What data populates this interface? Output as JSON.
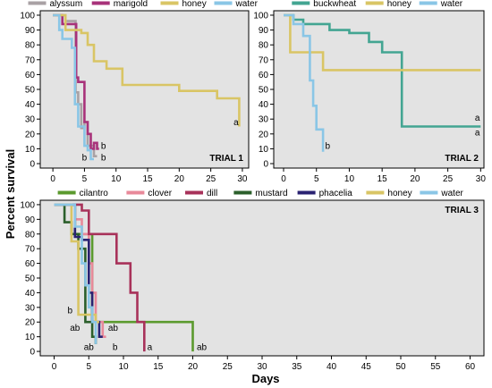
{
  "figure": {
    "ylabel": "Percent survival",
    "xlabel": "Days"
  },
  "chart_data": [
    {
      "type": "line",
      "title": "TRIAL 1",
      "xlim": [
        -2,
        31
      ],
      "ylim": [
        -3,
        103
      ],
      "xticks": [
        0,
        5,
        10,
        15,
        20,
        25,
        30
      ],
      "yticks": [
        0,
        10,
        20,
        30,
        40,
        50,
        60,
        70,
        80,
        90,
        100
      ],
      "legend_position": "top",
      "series": [
        {
          "name": "alyssum",
          "color": "#a9a1a4",
          "points": [
            [
              0,
              100
            ],
            [
              2,
              100
            ],
            [
              2,
              96
            ],
            [
              3.6,
              96
            ],
            [
              3.6,
              48
            ],
            [
              4,
              48
            ],
            [
              4,
              40
            ],
            [
              4.5,
              40
            ],
            [
              4.5,
              24
            ],
            [
              5,
              24
            ],
            [
              5,
              28
            ],
            [
              5.5,
              28
            ],
            [
              5.5,
              12
            ],
            [
              6.5,
              12
            ],
            [
              6.5,
              5
            ],
            [
              7,
              5
            ]
          ]
        },
        {
          "name": "marigold",
          "color": "#a8327a",
          "points": [
            [
              0,
              100
            ],
            [
              1.5,
              100
            ],
            [
              1.5,
              94
            ],
            [
              3.7,
              94
            ],
            [
              3.7,
              58
            ],
            [
              4,
              58
            ],
            [
              4,
              55
            ],
            [
              5,
              55
            ],
            [
              5,
              28
            ],
            [
              5.5,
              28
            ],
            [
              5.5,
              20
            ],
            [
              6,
              20
            ],
            [
              6,
              10
            ],
            [
              6.5,
              10
            ],
            [
              6.5,
              14
            ],
            [
              7,
              14
            ],
            [
              7,
              10
            ],
            [
              7.3,
              10
            ]
          ]
        },
        {
          "name": "honey",
          "color": "#d9c565",
          "points": [
            [
              0,
              100
            ],
            [
              2,
              100
            ],
            [
              2,
              90
            ],
            [
              4.5,
              90
            ],
            [
              4.5,
              88
            ],
            [
              5.5,
              88
            ],
            [
              5.5,
              80
            ],
            [
              6.5,
              80
            ],
            [
              6.5,
              69
            ],
            [
              8.5,
              69
            ],
            [
              8.5,
              64
            ],
            [
              11,
              64
            ],
            [
              11,
              53
            ],
            [
              20,
              53
            ],
            [
              20,
              49
            ],
            [
              26,
              49
            ],
            [
              26,
              44
            ],
            [
              29.5,
              44
            ],
            [
              29.5,
              25
            ]
          ]
        },
        {
          "name": "water",
          "color": "#8ac6e6",
          "points": [
            [
              0,
              100
            ],
            [
              1,
              100
            ],
            [
              1,
              90
            ],
            [
              1.5,
              90
            ],
            [
              1.5,
              84
            ],
            [
              3,
              84
            ],
            [
              3,
              78
            ],
            [
              3.5,
              78
            ],
            [
              3.5,
              40
            ],
            [
              4,
              40
            ],
            [
              4,
              25
            ],
            [
              5,
              25
            ],
            [
              5,
              12
            ],
            [
              5.5,
              12
            ],
            [
              5.5,
              9
            ],
            [
              6,
              9
            ],
            [
              6,
              3
            ],
            [
              6.5,
              3
            ]
          ]
        }
      ],
      "annotations": [
        {
          "text": "a",
          "x": 29,
          "y": 26
        },
        {
          "text": "b",
          "x": 5.0,
          "y": 2
        },
        {
          "text": "b",
          "x": 8.0,
          "y": 10
        },
        {
          "text": "b",
          "x": 8.0,
          "y": 2
        }
      ]
    },
    {
      "type": "line",
      "title": "TRIAL 2",
      "xlim": [
        -1.5,
        30.5
      ],
      "ylim": [
        -3,
        103
      ],
      "xticks": [
        0,
        5,
        10,
        15,
        20,
        25,
        30
      ],
      "yticks": [
        0,
        10,
        20,
        30,
        40,
        50,
        60,
        70,
        80,
        90,
        100
      ],
      "legend_position": "top",
      "series": [
        {
          "name": "buckwheat",
          "color": "#43a592",
          "points": [
            [
              0,
              100
            ],
            [
              1.5,
              100
            ],
            [
              1.5,
              97
            ],
            [
              3,
              97
            ],
            [
              3,
              94
            ],
            [
              7,
              94
            ],
            [
              7,
              90
            ],
            [
              10,
              90
            ],
            [
              10,
              88
            ],
            [
              13,
              88
            ],
            [
              13,
              82
            ],
            [
              15,
              82
            ],
            [
              15,
              75
            ],
            [
              18,
              75
            ],
            [
              18,
              25
            ],
            [
              30,
              25
            ]
          ]
        },
        {
          "name": "honey",
          "color": "#d9c565",
          "points": [
            [
              0,
              100
            ],
            [
              1,
              100
            ],
            [
              1,
              75
            ],
            [
              6,
              75
            ],
            [
              6,
              63
            ],
            [
              30,
              63
            ]
          ]
        },
        {
          "name": "water",
          "color": "#8ac6e6",
          "points": [
            [
              0,
              100
            ],
            [
              1.5,
              100
            ],
            [
              1.5,
              94
            ],
            [
              3,
              94
            ],
            [
              3,
              86
            ],
            [
              4,
              86
            ],
            [
              4,
              56
            ],
            [
              4.5,
              56
            ],
            [
              4.5,
              39
            ],
            [
              5,
              39
            ],
            [
              5,
              23
            ],
            [
              6,
              23
            ],
            [
              6,
              8
            ]
          ]
        }
      ],
      "annotations": [
        {
          "text": "a",
          "x": 29.5,
          "y": 29
        },
        {
          "text": "a",
          "x": 29.5,
          "y": 19
        },
        {
          "text": "b",
          "x": 6.7,
          "y": 10
        }
      ]
    },
    {
      "type": "line",
      "title": "TRIAL 3",
      "xlim": [
        -2,
        62
      ],
      "ylim": [
        -3,
        103
      ],
      "xticks": [
        0,
        5,
        10,
        15,
        20,
        25,
        30,
        35,
        40,
        45,
        50,
        55,
        60
      ],
      "yticks": [
        0,
        10,
        20,
        30,
        40,
        50,
        60,
        70,
        80,
        90,
        100
      ],
      "legend_position": "top",
      "series": [
        {
          "name": "cilantro",
          "color": "#5b9a2e",
          "points": [
            [
              0,
              100
            ],
            [
              3,
              100
            ],
            [
              3,
              80
            ],
            [
              5.5,
              80
            ],
            [
              5.5,
              20
            ],
            [
              20,
              20
            ],
            [
              20,
              0
            ]
          ]
        },
        {
          "name": "clover",
          "color": "#e8899a",
          "points": [
            [
              0,
              100
            ],
            [
              3,
              100
            ],
            [
              3,
              90
            ],
            [
              4,
              90
            ],
            [
              4,
              80
            ],
            [
              5,
              80
            ],
            [
              5,
              60
            ],
            [
              5.5,
              60
            ],
            [
              5.5,
              40
            ],
            [
              6,
              40
            ],
            [
              6,
              20
            ],
            [
              7,
              20
            ],
            [
              7,
              10
            ],
            [
              7.5,
              10
            ]
          ]
        },
        {
          "name": "dill",
          "color": "#a8325a",
          "points": [
            [
              0,
              100
            ],
            [
              4,
              100
            ],
            [
              4,
              96
            ],
            [
              5,
              96
            ],
            [
              5,
              80
            ],
            [
              7,
              80
            ],
            [
              7,
              80
            ],
            [
              9,
              80
            ],
            [
              9,
              60
            ],
            [
              11,
              60
            ],
            [
              11,
              40
            ],
            [
              12,
              40
            ],
            [
              12,
              20
            ],
            [
              13,
              20
            ],
            [
              13,
              0
            ]
          ]
        },
        {
          "name": "mustard",
          "color": "#2b5f2b",
          "points": [
            [
              0,
              100
            ],
            [
              1.5,
              100
            ],
            [
              1.5,
              88
            ],
            [
              2.5,
              88
            ],
            [
              2.5,
              80
            ],
            [
              3.5,
              80
            ],
            [
              3.5,
              70
            ],
            [
              4.5,
              70
            ],
            [
              4.5,
              20
            ],
            [
              5.5,
              20
            ],
            [
              5.5,
              10
            ],
            [
              6,
              10
            ],
            [
              6,
              5
            ]
          ]
        },
        {
          "name": "phacelia",
          "color": "#2a2272",
          "points": [
            [
              0,
              100
            ],
            [
              3,
              100
            ],
            [
              3,
              78
            ],
            [
              4,
              78
            ],
            [
              4,
              76
            ],
            [
              5,
              76
            ],
            [
              5,
              40
            ],
            [
              5.5,
              40
            ],
            [
              5.5,
              20
            ],
            [
              6.5,
              20
            ],
            [
              6.5,
              10
            ],
            [
              7,
              10
            ]
          ]
        },
        {
          "name": "honey",
          "color": "#d9c565",
          "points": [
            [
              0,
              100
            ],
            [
              2.5,
              100
            ],
            [
              2.5,
              75
            ],
            [
              3.5,
              75
            ],
            [
              3.5,
              25
            ],
            [
              6,
              25
            ],
            [
              6,
              20
            ],
            [
              6.5,
              20
            ]
          ]
        },
        {
          "name": "water",
          "color": "#8ac6e6",
          "points": [
            [
              0,
              100
            ],
            [
              3,
              100
            ],
            [
              3,
              85
            ],
            [
              4,
              85
            ],
            [
              4,
              60
            ],
            [
              4.5,
              60
            ],
            [
              4.5,
              45
            ],
            [
              5,
              45
            ],
            [
              5,
              30
            ],
            [
              5.5,
              30
            ],
            [
              5.5,
              20
            ],
            [
              6,
              20
            ],
            [
              6,
              5
            ]
          ]
        }
      ],
      "annotations": [
        {
          "text": "b",
          "x": 2.3,
          "y": 26
        },
        {
          "text": "ab",
          "x": 3.0,
          "y": 14
        },
        {
          "text": "ab",
          "x": 8.5,
          "y": 14
        },
        {
          "text": "ab",
          "x": 5.0,
          "y": 1
        },
        {
          "text": "b",
          "x": 8.8,
          "y": 1
        },
        {
          "text": "a",
          "x": 13.8,
          "y": 1
        },
        {
          "text": "ab",
          "x": 21.3,
          "y": 1
        }
      ]
    }
  ]
}
